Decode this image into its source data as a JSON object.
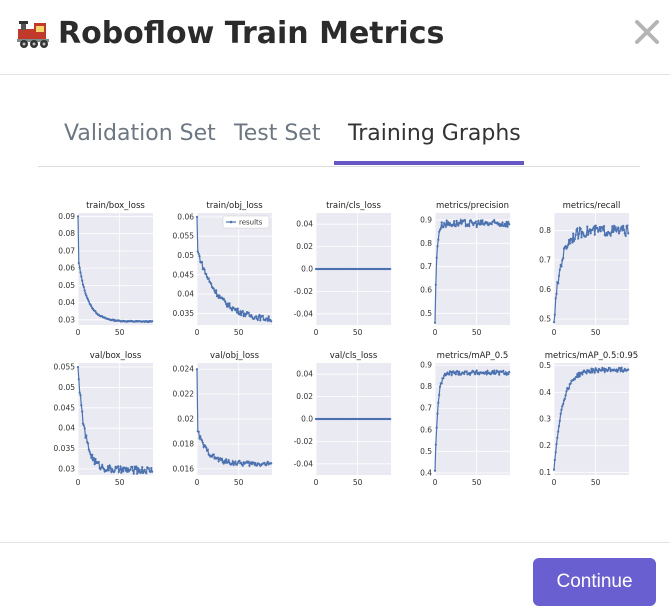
{
  "modal": {
    "title": "Roboflow Train Metrics",
    "title_icon": "locomotive-emoji",
    "close_icon": "close-icon"
  },
  "tabs": [
    {
      "label": "Validation Set",
      "active": false
    },
    {
      "label": "Test Set",
      "active": false
    },
    {
      "label": "Training Graphs",
      "active": true
    }
  ],
  "footer": {
    "continue_label": "Continue"
  },
  "colors": {
    "accent": "#6557c5",
    "button": "#6a5fd0",
    "plot_bg": "#eaeaf2",
    "series": "#4c72b0"
  },
  "chart_data": [
    {
      "type": "line",
      "title": "train/box_loss",
      "xlim": [
        0,
        90
      ],
      "ylim": [
        0.027,
        0.092
      ],
      "xticks": [
        0,
        50
      ],
      "yticks": [
        0.03,
        0.04,
        0.05,
        0.06,
        0.07,
        0.08,
        0.09
      ],
      "series": [
        {
          "shape": "exp",
          "start": 0.09,
          "second": 0.063,
          "end": 0.029,
          "k": 0.09,
          "noise": 0.0003
        }
      ]
    },
    {
      "type": "line",
      "title": "train/obj_loss",
      "xlim": [
        0,
        90
      ],
      "ylim": [
        0.032,
        0.061
      ],
      "xticks": [
        0,
        50
      ],
      "yticks": [
        0.035,
        0.04,
        0.045,
        0.05,
        0.055,
        0.06
      ],
      "legend": "results",
      "series": [
        {
          "name": "results",
          "shape": "exp",
          "start": 0.06,
          "second": 0.051,
          "end": 0.033,
          "k": 0.04,
          "noise": 0.0007
        }
      ]
    },
    {
      "type": "line",
      "title": "train/cls_loss",
      "xlim": [
        0,
        90
      ],
      "ylim": [
        -0.05,
        0.05
      ],
      "xticks": [
        0,
        50
      ],
      "yticks": [
        -0.04,
        -0.02,
        0.0,
        0.02,
        0.04
      ],
      "series": [
        {
          "shape": "flat",
          "value": 0.0
        }
      ]
    },
    {
      "type": "line",
      "title": "metrics/precision",
      "xlim": [
        0,
        90
      ],
      "ylim": [
        0.45,
        0.93
      ],
      "xticks": [
        0,
        50
      ],
      "yticks": [
        0.5,
        0.6,
        0.7,
        0.8,
        0.9
      ],
      "series": [
        {
          "shape": "rise",
          "start": 0.46,
          "end": 0.885,
          "k": 0.5,
          "noise": 0.015
        }
      ]
    },
    {
      "type": "line",
      "title": "metrics/recall",
      "xlim": [
        0,
        90
      ],
      "ylim": [
        0.48,
        0.86
      ],
      "xticks": [
        0,
        50
      ],
      "yticks": [
        0.5,
        0.6,
        0.7,
        0.8
      ],
      "series": [
        {
          "shape": "rise",
          "start": 0.49,
          "end": 0.8,
          "k": 0.12,
          "noise": 0.018
        }
      ]
    },
    {
      "type": "line",
      "title": "val/box_loss",
      "xlim": [
        0,
        90
      ],
      "ylim": [
        0.0285,
        0.056
      ],
      "xticks": [
        0,
        50
      ],
      "yticks": [
        0.03,
        0.035,
        0.04,
        0.045,
        0.05,
        0.055
      ],
      "series": [
        {
          "shape": "exp",
          "start": 0.055,
          "second": 0.052,
          "end": 0.0297,
          "k": 0.12,
          "noise": 0.0009
        }
      ]
    },
    {
      "type": "line",
      "title": "val/obj_loss",
      "xlim": [
        0,
        90
      ],
      "ylim": [
        0.0155,
        0.0245
      ],
      "xticks": [
        0,
        50
      ],
      "yticks": [
        0.016,
        0.018,
        0.02,
        0.022,
        0.024
      ],
      "series": [
        {
          "shape": "exp",
          "start": 0.024,
          "second": 0.019,
          "end": 0.0164,
          "k": 0.08,
          "noise": 0.0002
        }
      ]
    },
    {
      "type": "line",
      "title": "val/cls_loss",
      "xlim": [
        0,
        90
      ],
      "ylim": [
        -0.05,
        0.05
      ],
      "xticks": [
        0,
        50
      ],
      "yticks": [
        -0.04,
        -0.02,
        0.0,
        0.02,
        0.04
      ],
      "series": [
        {
          "shape": "flat",
          "value": 0.0
        }
      ]
    },
    {
      "type": "line",
      "title": "metrics/mAP_0.5",
      "xlim": [
        0,
        90
      ],
      "ylim": [
        0.39,
        0.91
      ],
      "xticks": [
        0,
        50
      ],
      "yticks": [
        0.4,
        0.5,
        0.6,
        0.7,
        0.8,
        0.9
      ],
      "series": [
        {
          "shape": "rise",
          "start": 0.41,
          "end": 0.865,
          "k": 0.3,
          "noise": 0.01
        }
      ]
    },
    {
      "type": "line",
      "title": "metrics/mAP_0.5:0.95",
      "xlim": [
        0,
        90
      ],
      "ylim": [
        0.09,
        0.51
      ],
      "xticks": [
        0,
        50
      ],
      "yticks": [
        0.1,
        0.2,
        0.3,
        0.4,
        0.5
      ],
      "series": [
        {
          "shape": "rise",
          "start": 0.11,
          "end": 0.485,
          "k": 0.1,
          "noise": 0.008
        }
      ]
    }
  ]
}
